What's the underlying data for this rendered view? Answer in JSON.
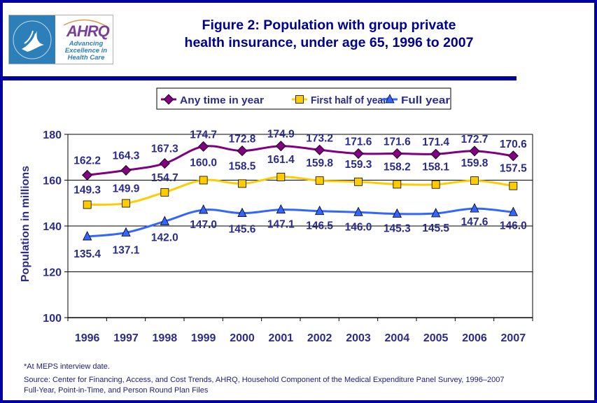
{
  "header": {
    "title_line1": "Figure 2: Population with group private",
    "title_line2": "health insurance, under age 65, 1996 to 2007",
    "logo": {
      "org": "AHRQ",
      "tagline_line1": "Advancing",
      "tagline_line2": "Excellence in",
      "tagline_line3": "Health Care",
      "seal_icon": "hhs-eagle-seal-icon"
    }
  },
  "colors": {
    "frame": "#0000a0",
    "text": "#2b2b8c",
    "any_time": "#800080",
    "first_half": "#ffcc00",
    "full_year": "#3366ff"
  },
  "chart_data": {
    "type": "line",
    "title": "Figure 2: Population with group private health insurance, under age 65, 1996 to 2007",
    "xlabel": "",
    "ylabel": "Population in millions",
    "ylim": [
      100,
      180
    ],
    "yticks": [
      100,
      120,
      140,
      160,
      180
    ],
    "grid": true,
    "legend_position": "top",
    "categories": [
      "1996",
      "1997",
      "1998",
      "1999",
      "2000",
      "2001",
      "2002",
      "2003",
      "2004",
      "2005",
      "2006",
      "2007"
    ],
    "series": [
      {
        "name": "Any time in year",
        "marker": "diamond",
        "color": "#800080",
        "values": [
          162.2,
          164.3,
          167.3,
          174.7,
          172.8,
          174.9,
          173.2,
          171.6,
          171.6,
          171.4,
          172.7,
          170.6
        ]
      },
      {
        "name": "First half of year*",
        "marker": "square",
        "color": "#ffcc00",
        "values": [
          149.3,
          149.9,
          154.7,
          160.0,
          158.5,
          161.4,
          159.8,
          159.3,
          158.2,
          158.1,
          159.8,
          157.5
        ]
      },
      {
        "name": "Full year",
        "marker": "triangle",
        "color": "#3366ff",
        "values": [
          135.4,
          137.1,
          142.0,
          147.0,
          145.6,
          147.1,
          146.5,
          146.0,
          145.3,
          145.5,
          147.6,
          146.0
        ]
      }
    ]
  },
  "footer": {
    "footnote": "*At MEPS interview date.",
    "source_line1": "Source: Center for Financing, Access, and Cost Trends, AHRQ, Household Component of the Medical Expenditure Panel Survey, 1996–2007",
    "source_line2": "Full-Year, Point-in-Time, and Person Round Plan Files"
  }
}
